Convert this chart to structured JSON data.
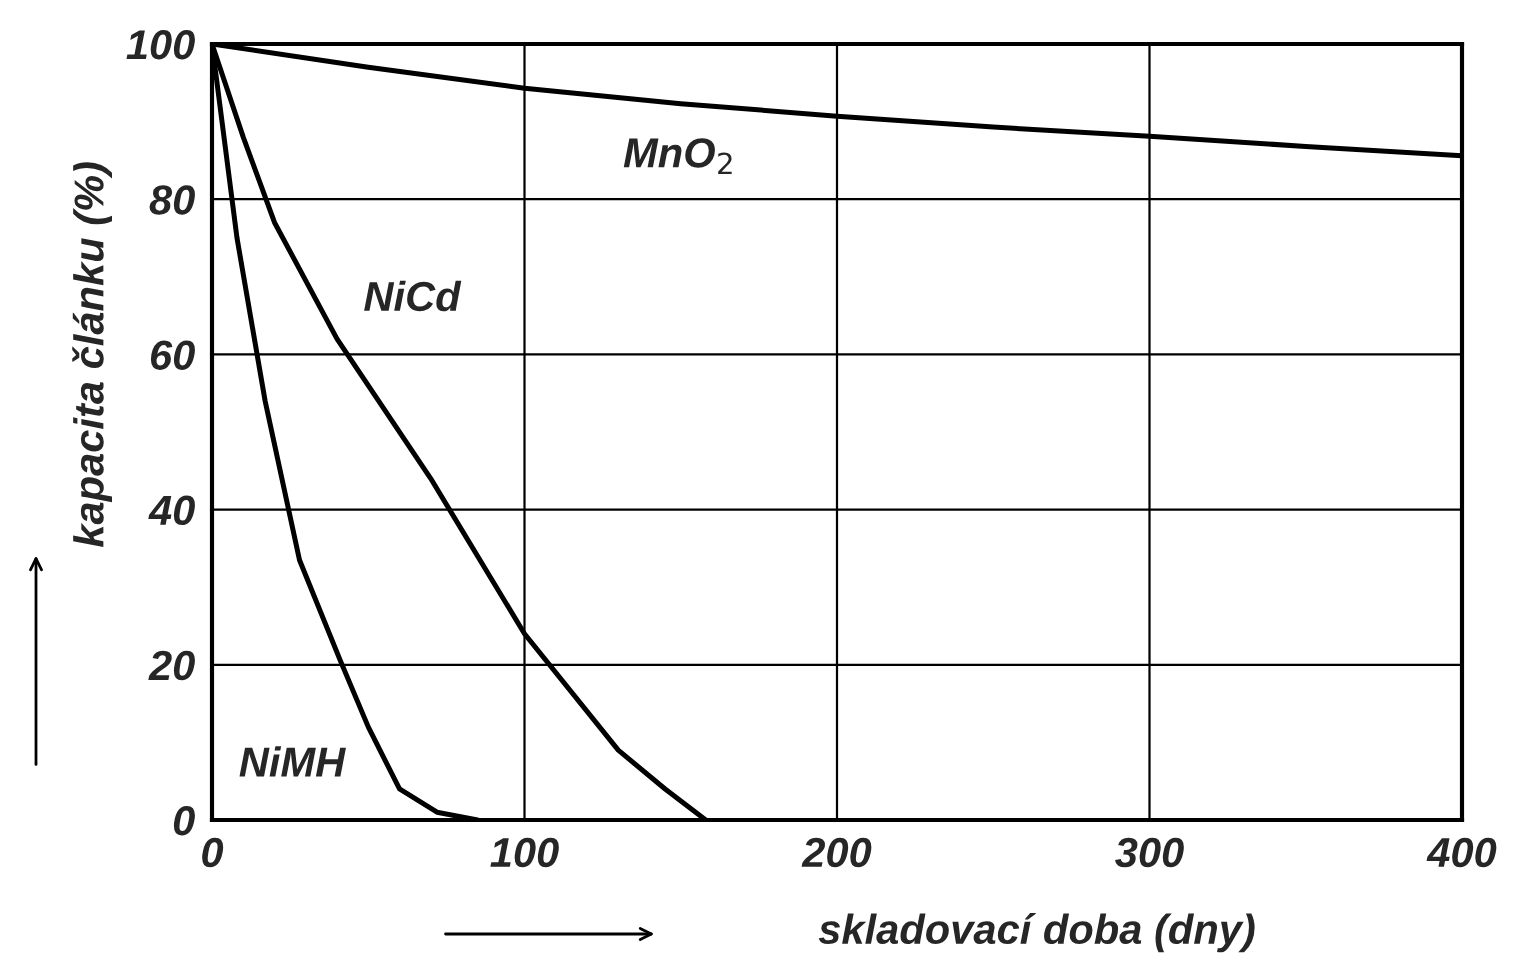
{
  "chart_data": {
    "type": "line",
    "xlabel": "skladovací doba (dny)",
    "ylabel": "kapacita článku (%)",
    "xlim": [
      0,
      400
    ],
    "ylim": [
      0,
      100
    ],
    "xticks": [
      0,
      100,
      200,
      300,
      400
    ],
    "yticks": [
      0,
      20,
      40,
      60,
      80,
      100
    ],
    "grid": true,
    "legend": false,
    "marker": "none",
    "line_style": "solid",
    "series": [
      {
        "color": "#000000",
        "x": [
          0,
          50,
          100,
          150,
          200,
          250,
          300,
          350,
          400
        ],
        "values": [
          100,
          97,
          94.3,
          92.3,
          90.7,
          89.3,
          88.1,
          86.8,
          85.6
        ]
      },
      {
        "color": "#000000",
        "x": [
          0,
          10,
          20,
          40,
          70,
          100,
          130,
          145,
          158
        ],
        "values": [
          100,
          88,
          77,
          62,
          44,
          24,
          9,
          4,
          0
        ]
      },
      {
        "color": "#000000",
        "x": [
          0,
          8,
          17,
          28,
          41,
          50,
          60,
          72,
          85
        ],
        "values": [
          100,
          75,
          54,
          33.5,
          20.6,
          12,
          4,
          1,
          0
        ]
      }
    ],
    "annotations": [
      "MnO$_{2}$",
      "NiCd",
      "NiMH"
    ]
  }
}
